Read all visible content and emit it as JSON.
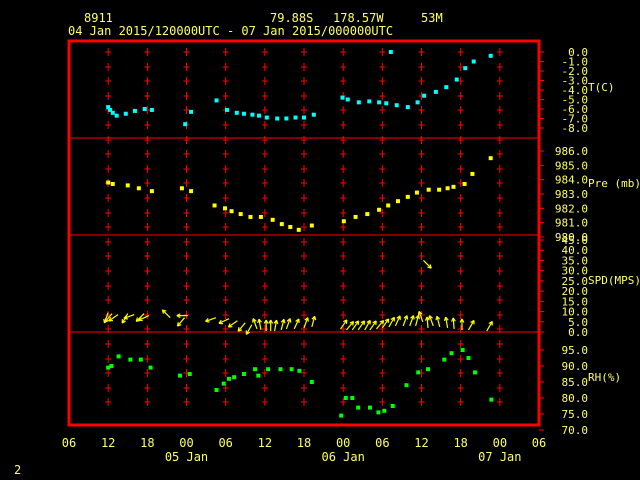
{
  "header": {
    "station": "8911",
    "lat": "79.88S",
    "lon": "178.57W",
    "elev": "53M",
    "period": "04 Jan 2015/120000UTC - 07 Jan 2015/000000UTC"
  },
  "footer": {
    "page_number": "2"
  },
  "colors": {
    "frame": "#ff0000",
    "grid": "#ff0000",
    "text": "#ffff66",
    "temperature": "#00ffff",
    "pressure": "#ffff00",
    "wind": "#ffff00",
    "humidity": "#00ff00"
  },
  "chart_data": {
    "type": "scatter",
    "x_unit": "hours since 04 Jan 2015 00 UTC",
    "x_range": [
      6,
      78
    ],
    "x_tick_labels": [
      "06",
      "12",
      "18",
      "00",
      "06",
      "12",
      "18",
      "00",
      "06",
      "12",
      "18",
      "00",
      "06"
    ],
    "x_tick_hours": [
      6,
      12,
      18,
      24,
      30,
      36,
      42,
      48,
      54,
      60,
      66,
      72,
      78
    ],
    "date_labels": [
      {
        "label": "05 Jan",
        "hour": 24
      },
      {
        "label": "06 Jan",
        "hour": 48
      },
      {
        "label": "07 Jan",
        "hour": 72
      }
    ],
    "panels": [
      {
        "name": "T(C)",
        "kind": "scatter",
        "ylim": [
          -8.0,
          0.0
        ],
        "ticks": [
          "0.0",
          "-1.0",
          "-2.0",
          "-3.0",
          "-4.0",
          "-5.0",
          "-6.0",
          "-7.0",
          "-8.0"
        ],
        "tick_values": [
          0,
          -1,
          -2,
          -3,
          -4,
          -5,
          -6,
          -7,
          -8
        ],
        "points": [
          [
            12,
            -5.8
          ],
          [
            12.3,
            -6.1
          ],
          [
            12.7,
            -6.4
          ],
          [
            13.3,
            -6.7
          ],
          [
            14.7,
            -6.5
          ],
          [
            16.1,
            -6.2
          ],
          [
            17.6,
            -6.0
          ],
          [
            18.7,
            -6.1
          ],
          [
            23.8,
            -7.6
          ],
          [
            24.7,
            -6.3
          ],
          [
            28.6,
            -5.1
          ],
          [
            30.2,
            -6.1
          ],
          [
            31.7,
            -6.4
          ],
          [
            32.8,
            -6.5
          ],
          [
            34.1,
            -6.6
          ],
          [
            35.1,
            -6.7
          ],
          [
            36.3,
            -6.9
          ],
          [
            37.9,
            -7.0
          ],
          [
            39.3,
            -7.0
          ],
          [
            40.7,
            -6.9
          ],
          [
            42.0,
            -6.9
          ],
          [
            43.5,
            -6.6
          ],
          [
            47.9,
            -4.8
          ],
          [
            48.7,
            -5.0
          ],
          [
            50.4,
            -5.3
          ],
          [
            52.0,
            -5.2
          ],
          [
            53.5,
            -5.3
          ],
          [
            54.6,
            -5.4
          ],
          [
            55.3,
            0.0
          ],
          [
            56.2,
            -5.6
          ],
          [
            57.9,
            -5.8
          ],
          [
            59.4,
            -5.3
          ],
          [
            60.4,
            -4.6
          ],
          [
            62.2,
            -4.2
          ],
          [
            63.8,
            -3.7
          ],
          [
            65.4,
            -2.9
          ],
          [
            66.7,
            -1.7
          ],
          [
            68.0,
            -1.0
          ],
          [
            70.6,
            -0.4
          ]
        ]
      },
      {
        "name": "Pre (mb)",
        "kind": "scatter",
        "ylim": [
          980.0,
          986.0
        ],
        "ticks": [
          "986.0",
          "985.0",
          "984.0",
          "983.0",
          "982.0",
          "981.0",
          "980.0"
        ],
        "tick_values": [
          986,
          985,
          984,
          983,
          982,
          981,
          980
        ],
        "points": [
          [
            12,
            983.8
          ],
          [
            12.7,
            983.7
          ],
          [
            15,
            983.6
          ],
          [
            16.7,
            983.4
          ],
          [
            18.7,
            983.2
          ],
          [
            23.3,
            983.4
          ],
          [
            24.7,
            983.2
          ],
          [
            28.3,
            982.2
          ],
          [
            29.9,
            982.0
          ],
          [
            30.9,
            981.8
          ],
          [
            32.3,
            981.6
          ],
          [
            33.8,
            981.4
          ],
          [
            35.4,
            981.4
          ],
          [
            37.2,
            981.2
          ],
          [
            38.6,
            980.9
          ],
          [
            39.9,
            980.7
          ],
          [
            41.2,
            980.5
          ],
          [
            43.2,
            980.8
          ],
          [
            48.1,
            981.1
          ],
          [
            49.9,
            981.4
          ],
          [
            51.7,
            981.6
          ],
          [
            53.5,
            981.9
          ],
          [
            54.9,
            982.2
          ],
          [
            56.4,
            982.5
          ],
          [
            57.9,
            982.8
          ],
          [
            59.3,
            983.1
          ],
          [
            61.1,
            983.3
          ],
          [
            62.7,
            983.3
          ],
          [
            64.0,
            983.4
          ],
          [
            64.9,
            983.5
          ],
          [
            66.6,
            983.7
          ],
          [
            67.8,
            984.4
          ],
          [
            70.6,
            985.5
          ]
        ]
      },
      {
        "name": "SPD(MPS)",
        "kind": "wind",
        "ylim": [
          0,
          45
        ],
        "ticks": [
          "45.0",
          "40.0",
          "35.0",
          "30.0",
          "25.0",
          "20.0",
          "15.0",
          "10.0",
          "5.0",
          "0.0"
        ],
        "tick_values": [
          45,
          40,
          35,
          30,
          25,
          20,
          15,
          10,
          5,
          0
        ],
        "arrows": [
          {
            "h": 12,
            "spd": 9.5,
            "dir": 250
          },
          {
            "h": 12.6,
            "spd": 9,
            "dir": 230
          },
          {
            "h": 13.5,
            "spd": 8.5,
            "dir": 215
          },
          {
            "h": 15,
            "spd": 9,
            "dir": 240
          },
          {
            "h": 16,
            "spd": 8.5,
            "dir": 200
          },
          {
            "h": 17.5,
            "spd": 9,
            "dir": 225
          },
          {
            "h": 18.2,
            "spd": 8,
            "dir": 205
          },
          {
            "h": 21.5,
            "spd": 7,
            "dir": 135
          },
          {
            "h": 23.7,
            "spd": 7,
            "dir": 230
          },
          {
            "h": 24.2,
            "spd": 8,
            "dir": 180
          },
          {
            "h": 28.5,
            "spd": 7,
            "dir": 200
          },
          {
            "h": 30.5,
            "spd": 6.5,
            "dir": 205
          },
          {
            "h": 31.8,
            "spd": 5.5,
            "dir": 215
          },
          {
            "h": 33,
            "spd": 4.5,
            "dir": 230
          },
          {
            "h": 34,
            "spd": 3.5,
            "dir": 240
          },
          {
            "h": 34.8,
            "spd": 1.5,
            "dir": 110
          },
          {
            "h": 35.4,
            "spd": 1,
            "dir": 100
          },
          {
            "h": 36.2,
            "spd": 0.5,
            "dir": 90
          },
          {
            "h": 36.9,
            "spd": 0.5,
            "dir": 90
          },
          {
            "h": 37.5,
            "spd": 0.5,
            "dir": 80
          },
          {
            "h": 38.5,
            "spd": 1,
            "dir": 75
          },
          {
            "h": 39.3,
            "spd": 1.5,
            "dir": 70
          },
          {
            "h": 40.5,
            "spd": 1.5,
            "dir": 65
          },
          {
            "h": 42,
            "spd": 2,
            "dir": 70
          },
          {
            "h": 43.2,
            "spd": 2.5,
            "dir": 75
          },
          {
            "h": 47.6,
            "spd": 1.5,
            "dir": 55
          },
          {
            "h": 48.5,
            "spd": 1,
            "dir": 50
          },
          {
            "h": 49.4,
            "spd": 1,
            "dir": 55
          },
          {
            "h": 50.3,
            "spd": 1,
            "dir": 55
          },
          {
            "h": 51.3,
            "spd": 1,
            "dir": 60
          },
          {
            "h": 52.1,
            "spd": 1,
            "dir": 55
          },
          {
            "h": 53.1,
            "spd": 1.5,
            "dir": 50
          },
          {
            "h": 54,
            "spd": 2,
            "dir": 55
          },
          {
            "h": 55,
            "spd": 2.5,
            "dir": 60
          },
          {
            "h": 56,
            "spd": 3,
            "dir": 65
          },
          {
            "h": 57.2,
            "spd": 3,
            "dir": 70
          },
          {
            "h": 58.2,
            "spd": 3,
            "dir": 70
          },
          {
            "h": 59.1,
            "spd": 3,
            "dir": 75
          },
          {
            "h": 60.2,
            "spd": 5,
            "dir": 110
          },
          {
            "h": 61,
            "spd": 2,
            "dir": 95
          },
          {
            "h": 60.3,
            "spd": 35,
            "dir": 315
          },
          {
            "h": 61.8,
            "spd": 3,
            "dir": 110
          },
          {
            "h": 62.8,
            "spd": 2.5,
            "dir": 105
          },
          {
            "h": 64,
            "spd": 2,
            "dir": 100
          },
          {
            "h": 65,
            "spd": 1.5,
            "dir": 95
          },
          {
            "h": 66.2,
            "spd": 1,
            "dir": 90
          },
          {
            "h": 67.2,
            "spd": 1,
            "dir": 60
          },
          {
            "h": 70,
            "spd": 0.5,
            "dir": 60
          }
        ]
      },
      {
        "name": "RH(%)",
        "kind": "scatter",
        "ylim": [
          70.0,
          98.0
        ],
        "ticks": [
          "95.0",
          "90.0",
          "85.0",
          "80.0",
          "75.0",
          "70.0"
        ],
        "tick_values": [
          95,
          90,
          85,
          80,
          75,
          70
        ],
        "points": [
          [
            12,
            89.5
          ],
          [
            12.5,
            90
          ],
          [
            13.6,
            93
          ],
          [
            15.4,
            92
          ],
          [
            17,
            92
          ],
          [
            18.5,
            89.5
          ],
          [
            23,
            87
          ],
          [
            24.5,
            87.5
          ],
          [
            28.6,
            82.5
          ],
          [
            29.7,
            84.5
          ],
          [
            30.5,
            86
          ],
          [
            31.3,
            86.5
          ],
          [
            32.8,
            87.5
          ],
          [
            34.5,
            89
          ],
          [
            35,
            87
          ],
          [
            36.5,
            89
          ],
          [
            38.4,
            89
          ],
          [
            40.1,
            89
          ],
          [
            41.3,
            88.5
          ],
          [
            43.2,
            85
          ],
          [
            47.7,
            74.5
          ],
          [
            48.4,
            80
          ],
          [
            49.4,
            80
          ],
          [
            50.3,
            77
          ],
          [
            52.1,
            77
          ],
          [
            53.4,
            75.5
          ],
          [
            54.3,
            76
          ],
          [
            55.6,
            77.5
          ],
          [
            57.7,
            84
          ],
          [
            59.5,
            88
          ],
          [
            61,
            89
          ],
          [
            63.5,
            92
          ],
          [
            64.6,
            94
          ],
          [
            66.3,
            95
          ],
          [
            67.2,
            92.5
          ],
          [
            68.2,
            88
          ],
          [
            70.7,
            79.5
          ]
        ]
      }
    ]
  }
}
